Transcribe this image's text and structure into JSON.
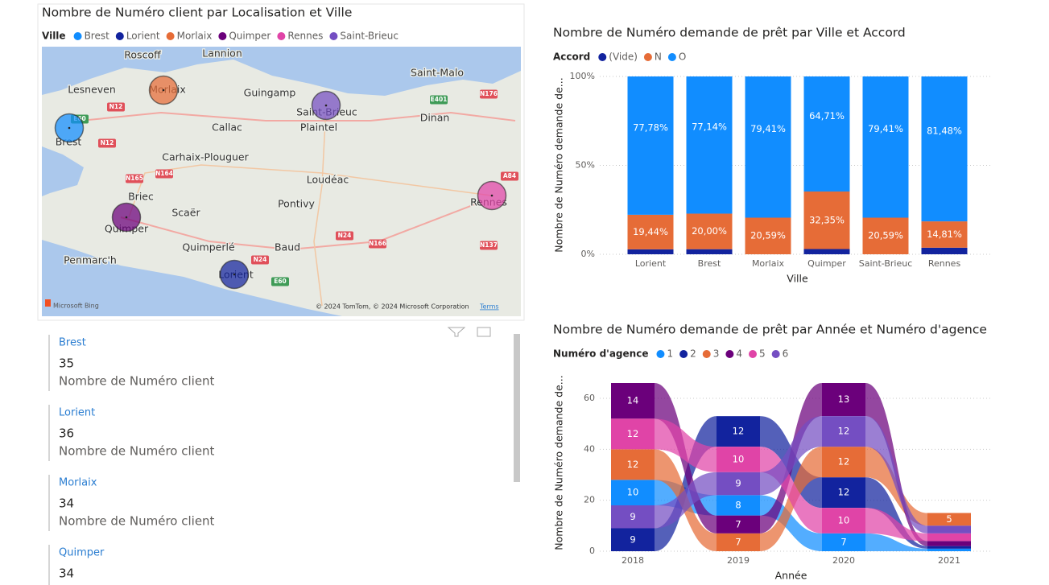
{
  "map": {
    "title": "Nombre de Numéro client par Localisation et Ville",
    "legend_title": "Ville",
    "cities": [
      {
        "name": "Brest",
        "color": "#118DFF"
      },
      {
        "name": "Lorient",
        "color": "#12239E"
      },
      {
        "name": "Morlaix",
        "color": "#E66C37"
      },
      {
        "name": "Quimper",
        "color": "#6B007B"
      },
      {
        "name": "Rennes",
        "color": "#E044A7"
      },
      {
        "name": "Saint-Brieuc",
        "color": "#744EC2"
      }
    ],
    "places": [
      "Roscoff",
      "Lannion",
      "Saint-Malo",
      "Lesneven",
      "Morlaix",
      "Guingamp",
      "Saint-Brieuc",
      "Plaintel",
      "Callac",
      "Dinan",
      "Brest",
      "Carhaix-Plouguer",
      "Loudéac",
      "Briec",
      "Scaër",
      "Pontivy",
      "Rennes",
      "Quimper",
      "Quimperlé",
      "Baud",
      "Penmarc'h",
      "Lorient"
    ],
    "roads": [
      "N12",
      "E401",
      "N176",
      "E60",
      "N12",
      "N165",
      "N164",
      "A84",
      "N24",
      "N166",
      "N137",
      "N24",
      "E60"
    ],
    "attribution": "© 2024 TomTom, © 2024 Microsoft Corporation",
    "terms": "Terms",
    "provider": "Microsoft Bing"
  },
  "cards": {
    "measure": "Nombre de Numéro client",
    "items": [
      {
        "name": "Brest",
        "value": 35
      },
      {
        "name": "Lorient",
        "value": 36
      },
      {
        "name": "Morlaix",
        "value": 34
      },
      {
        "name": "Quimper",
        "value": 34
      }
    ]
  },
  "chart_data": [
    {
      "type": "bar",
      "stacked_percent": true,
      "title": "Nombre de Numéro demande de prêt par Ville et Accord",
      "legend_title": "Accord",
      "x_label": "Ville",
      "y_label": "Nombre de Numéro demande de...",
      "categories": [
        "Lorient",
        "Brest",
        "Morlaix",
        "Quimper",
        "Saint-Brieuc",
        "Rennes"
      ],
      "series": [
        {
          "name": "(Vide)",
          "color": "#12239E",
          "values": [
            2.78,
            2.86,
            0,
            2.94,
            0,
            3.7
          ]
        },
        {
          "name": "N",
          "color": "#E66C37",
          "values": [
            19.44,
            20.0,
            20.59,
            32.35,
            20.59,
            14.81
          ],
          "value_labels": [
            "19,44%",
            "20,00%",
            "20,59%",
            "32,35%",
            "20,59%",
            "14,81%"
          ]
        },
        {
          "name": "O",
          "color": "#118DFF",
          "values": [
            77.78,
            77.14,
            79.41,
            64.71,
            79.41,
            81.48
          ],
          "value_labels": [
            "77,78%",
            "77,14%",
            "79,41%",
            "64,71%",
            "79,41%",
            "81,48%"
          ]
        }
      ],
      "ylim": [
        0,
        100
      ],
      "yticks": [
        {
          "value": 0,
          "label": "0%"
        },
        {
          "value": 50,
          "label": "50%"
        },
        {
          "value": 100,
          "label": "100%"
        }
      ],
      "grid": true
    },
    {
      "type": "ribbon",
      "title": "Nombre de Numéro demande de prêt par Année et Numéro d'agence",
      "legend_title": "Numéro d'agence",
      "x_label": "Année",
      "y_label": "Nombre de Numéro demande de...",
      "categories": [
        "2018",
        "2019",
        "2020",
        "2021"
      ],
      "series": [
        {
          "name": "1",
          "color": "#118DFF",
          "values": [
            10,
            8,
            7,
            1
          ]
        },
        {
          "name": "2",
          "color": "#12239E",
          "values": [
            9,
            12,
            12,
            1
          ]
        },
        {
          "name": "3",
          "color": "#E66C37",
          "values": [
            12,
            7,
            12,
            5
          ]
        },
        {
          "name": "4",
          "color": "#6B007B",
          "values": [
            14,
            7,
            13,
            2
          ]
        },
        {
          "name": "5",
          "color": "#E044A7",
          "values": [
            12,
            10,
            10,
            3
          ]
        },
        {
          "name": "6",
          "color": "#744EC2",
          "values": [
            9,
            9,
            12,
            3
          ]
        }
      ],
      "ylim": [
        0,
        66
      ],
      "yticks": [
        0,
        20,
        40,
        60
      ],
      "grid": true
    }
  ]
}
